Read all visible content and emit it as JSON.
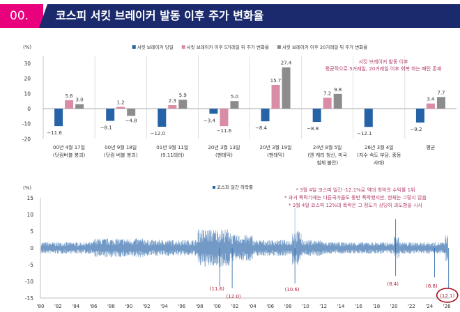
{
  "header": {
    "badge": "00.",
    "title": "코스피 서킷 브레이커 발동 이후 주가 변화율"
  },
  "chart_data": [
    {
      "type": "bar",
      "yunit": "(%)",
      "ylim": [
        -20,
        30
      ],
      "yticks": [
        30,
        20,
        10,
        0,
        -10,
        -20
      ],
      "legend_position": "top",
      "categories": [
        [
          "00년 4월 17일",
          "(닷컴버블 붕괴)"
        ],
        [
          "00년 9월 18일",
          "(닷컴 버블 붕괴)"
        ],
        [
          "01년 9월 11일",
          "(9.11테러)"
        ],
        [
          "20년 3월 13일",
          "(팬데믹)"
        ],
        [
          "20년 3월 19일",
          "(팬데믹)"
        ],
        [
          "24년 8월 5일",
          "(엔 캐리 청산, 미국",
          "침체 불안)"
        ],
        [
          "26년 3월 4일",
          "(지수 속도 부담, 중동",
          "사태)"
        ],
        [
          "평균"
        ]
      ],
      "series": [
        {
          "name": "서킷 브레이커 당일",
          "color": "#2563a6",
          "values": [
            -11.6,
            -8.1,
            -12.0,
            -3.4,
            -8.4,
            -8.8,
            -12.1,
            -9.2
          ]
        },
        {
          "name": "서킷 브레이커 이후 5거래일 뒤 주가 변화율",
          "color": "#d98ca6",
          "values": [
            5.6,
            1.2,
            2.3,
            -11.6,
            15.7,
            7.2,
            null,
            3.4
          ]
        },
        {
          "name": "서킷 브레이커 이후 20거래일 뒤 주가 변화율",
          "color": "#8c8c8c",
          "values": [
            3.0,
            -4.8,
            5.9,
            5.0,
            27.4,
            9.8,
            null,
            7.7
          ]
        }
      ],
      "annotation": [
        "서킷 브레이커 발동 이후",
        "평균적으로 5거래일, 20거래일 이후 회복 하는 패턴 존재"
      ]
    },
    {
      "type": "area",
      "yunit": "(%)",
      "ylim": [
        -15,
        15
      ],
      "yticks": [
        15,
        10,
        5,
        0,
        -5,
        -10,
        -15
      ],
      "xlim": [
        1980,
        2026.3
      ],
      "xticks": [
        "'80",
        "'82",
        "'84",
        "'86",
        "'88",
        "'90",
        "'92",
        "'94",
        "'96",
        "'98",
        "'00",
        "'02",
        "'04",
        "'06",
        "'08",
        "'10",
        "'12",
        "'14",
        "'16",
        "'18",
        "'20",
        "'22",
        "'24",
        "'26"
      ],
      "series": [
        {
          "name": "코스피 일간 하락률",
          "color": "#2563a6"
        }
      ],
      "labeled_points": [
        {
          "x": 2000.3,
          "y": -11.6,
          "label": "(11.6)"
        },
        {
          "x": 2001.7,
          "y": -12.0,
          "label": "(12.0)"
        },
        {
          "x": 2008.8,
          "y": -10.6,
          "label": "(10.6)"
        },
        {
          "x": 2020.2,
          "y": -8.4,
          "label": "(8.4)"
        },
        {
          "x": 2024.6,
          "y": -8.8,
          "label": "(8.8)"
        },
        {
          "x": 2026.2,
          "y": -12.1,
          "label": "(12.1)",
          "highlight": true
        }
      ],
      "annotations": [
        "* 3월 4일 코스피 일간 -12.1%로 역대 최악의 수익률 1위",
        "* 과거 폭락기에는 다른국가들도 동반 폭락했지만, 현재는 그렇지 않음",
        "* 3월 4일 코스피 12%대 폭락은 그 정도가 상당히 과도함을 시사"
      ]
    }
  ]
}
